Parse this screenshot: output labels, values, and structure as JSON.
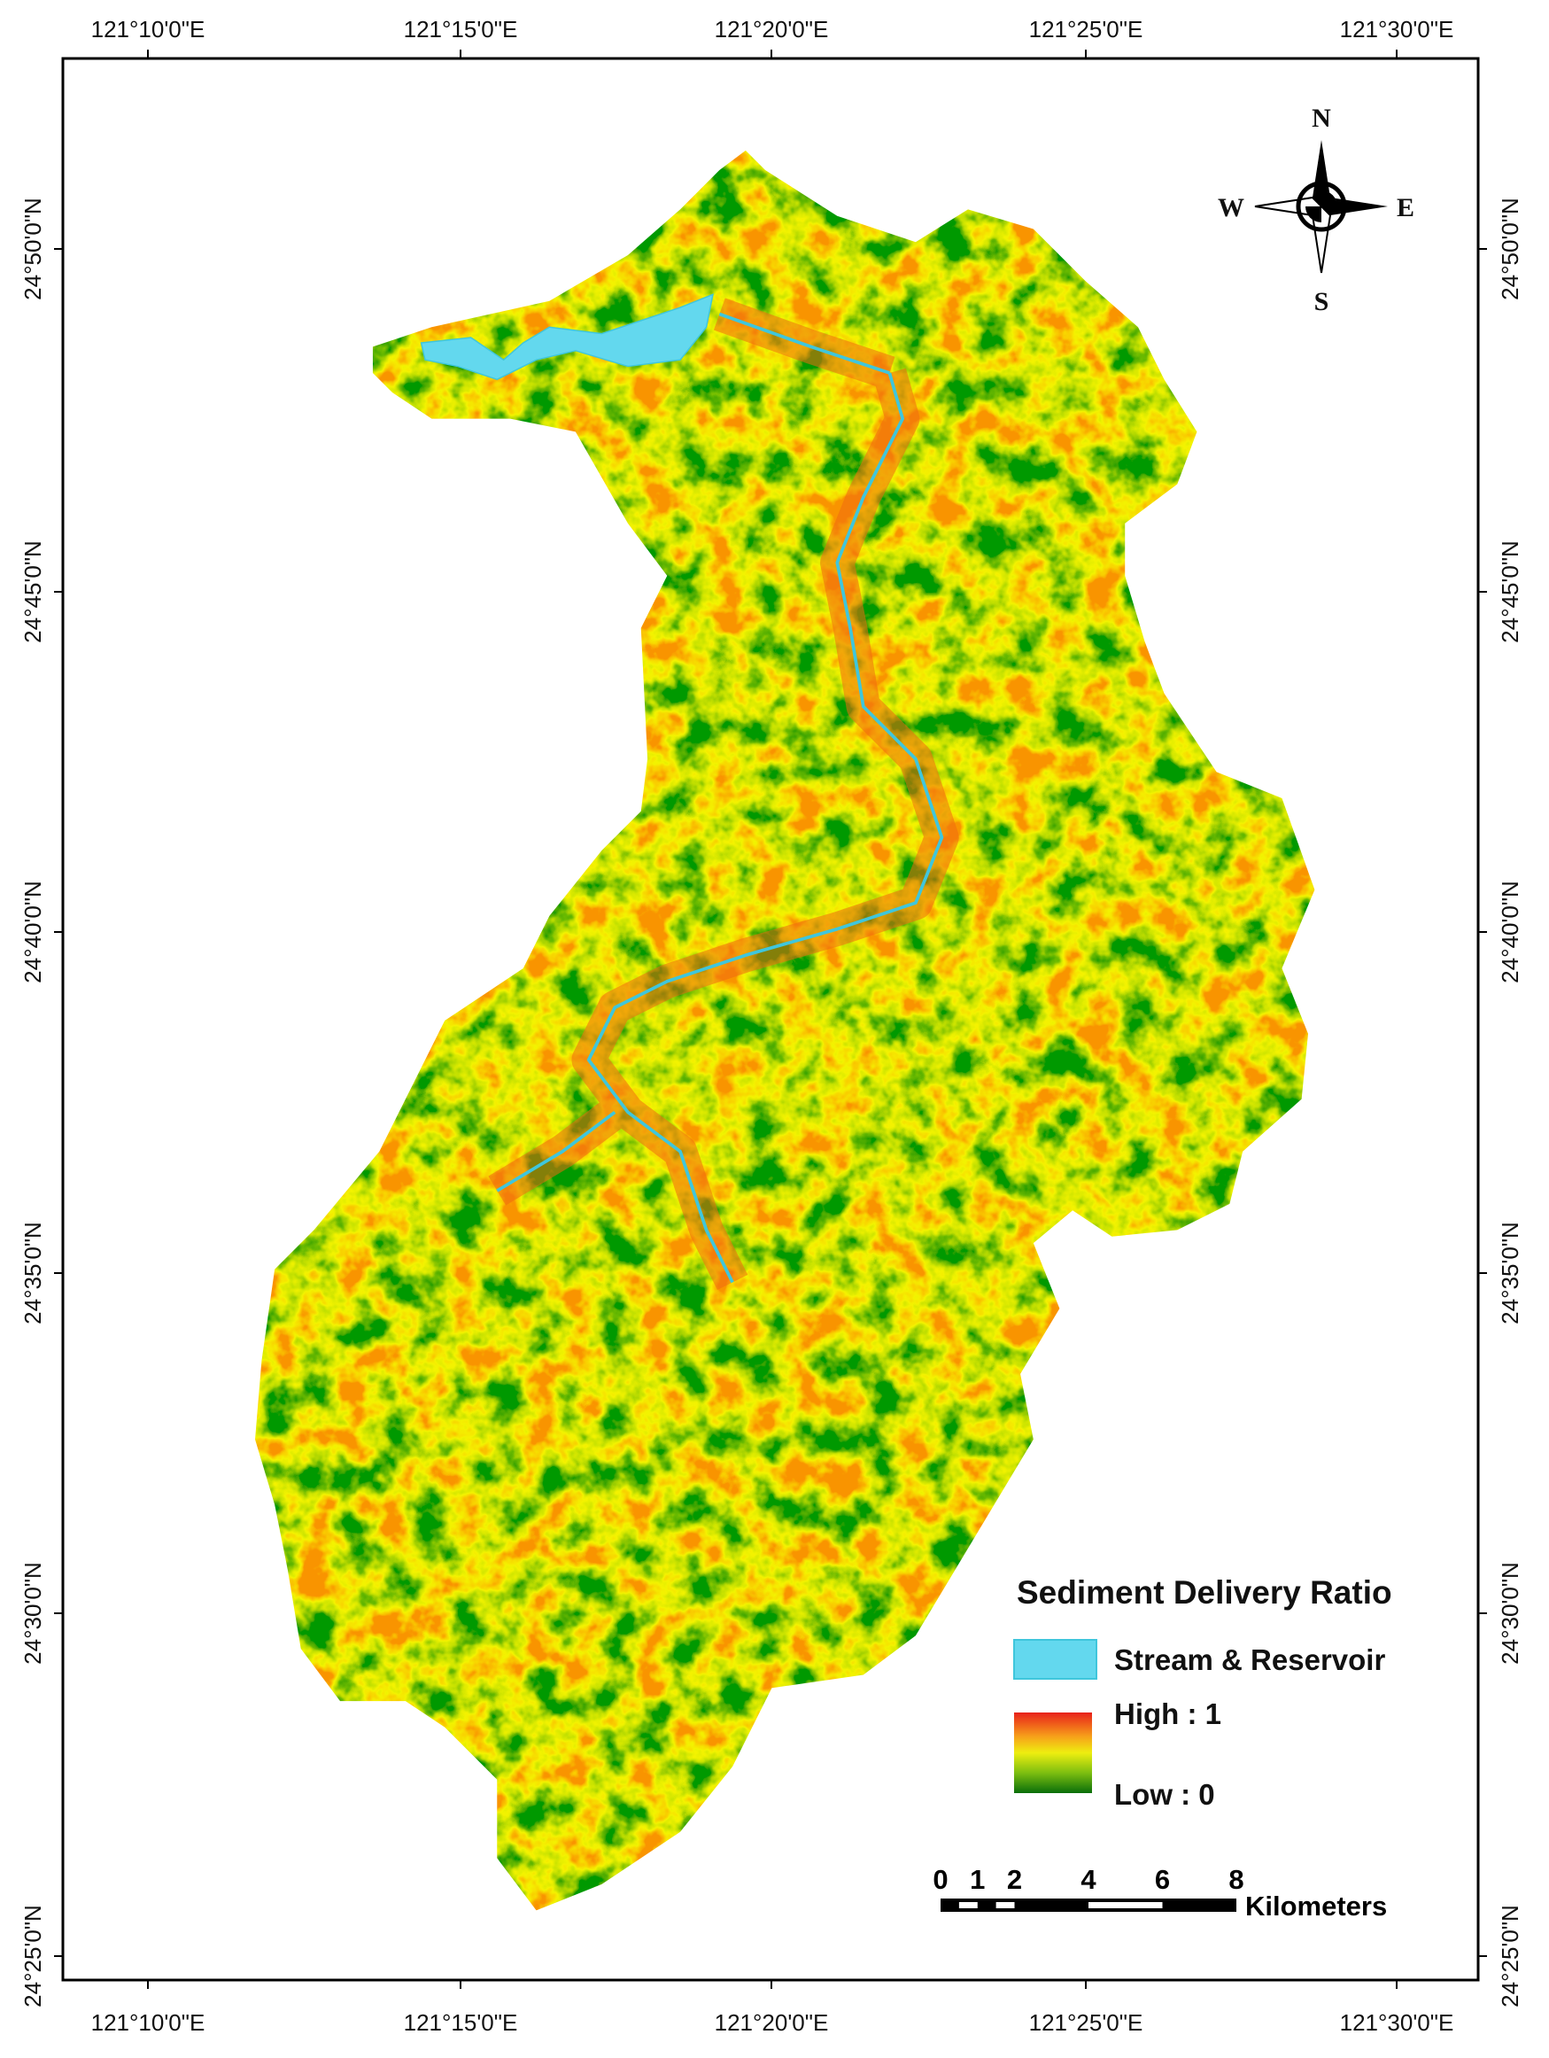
{
  "graticule": {
    "top": [
      "121°10'0\"E",
      "121°15'0\"E",
      "121°20'0\"E",
      "121°25'0\"E",
      "121°30'0\"E"
    ],
    "bottom": [
      "121°10'0\"E",
      "121°15'0\"E",
      "121°20'0\"E",
      "121°25'0\"E",
      "121°30'0\"E"
    ],
    "left": [
      "24°50'0\"N",
      "24°45'0\"N",
      "24°40'0\"N",
      "24°35'0\"N",
      "24°30'0\"N",
      "24°25'0\"N"
    ],
    "right": [
      "24°50'0\"N",
      "24°45'0\"N",
      "24°40'0\"N",
      "24°35'0\"N",
      "24°30'0\"N",
      "24°25'0\"N"
    ]
  },
  "compass": {
    "north": "N",
    "south": "S",
    "west": "W",
    "east": "E"
  },
  "legend": {
    "title": "Sediment Delivery Ratio",
    "stream": "Stream & Reservoir",
    "high": "High : 1",
    "low": "Low : 0"
  },
  "scale_bar": {
    "ticks": [
      0,
      1,
      2,
      4,
      6,
      8
    ],
    "unit": "Kilometers"
  }
}
